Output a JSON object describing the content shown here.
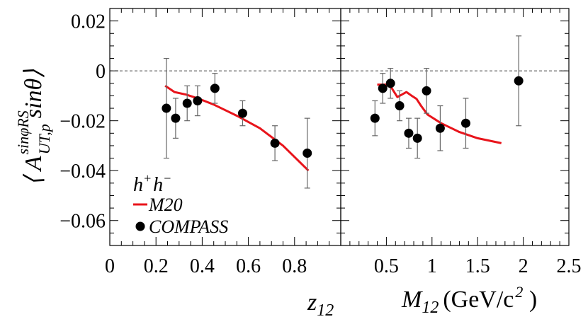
{
  "chart_data": [
    {
      "type": "scatter",
      "panel": "left",
      "title": "",
      "xlabel": "z",
      "xlabel_sub": "12",
      "ylabel_main": "A",
      "ylabel_sup": "sinφRS",
      "ylabel_sub": "UT,p",
      "ylabel_tail": "sinθ",
      "xlim": [
        0,
        1.0
      ],
      "ylim": [
        -0.07,
        0.025
      ],
      "x_ticks": [
        0,
        0.2,
        0.4,
        0.6,
        0.8
      ],
      "x_tick_labels": [
        "0",
        "0.2",
        "0.4",
        "0.6",
        "0.8"
      ],
      "y_ticks": [
        0.02,
        0,
        -0.02,
        -0.04,
        -0.06
      ],
      "y_tick_labels": [
        "0.02",
        "0",
        "−0.02",
        "−0.04",
        "−0.06"
      ],
      "zero_line": 0,
      "series": [
        {
          "name": "M20",
          "kind": "line",
          "color": "#e8141b",
          "x": [
            0.24,
            0.28,
            0.33,
            0.38,
            0.45,
            0.55,
            0.65,
            0.75,
            0.86
          ],
          "y": [
            -0.006,
            -0.0085,
            -0.0095,
            -0.011,
            -0.0135,
            -0.018,
            -0.023,
            -0.03,
            -0.04
          ]
        },
        {
          "name": "COMPASS",
          "kind": "points",
          "color": "#000000",
          "x": [
            0.245,
            0.285,
            0.335,
            0.38,
            0.455,
            0.575,
            0.715,
            0.855
          ],
          "y": [
            -0.015,
            -0.019,
            -0.013,
            -0.012,
            -0.007,
            -0.017,
            -0.029,
            -0.033
          ],
          "err": [
            0.02,
            0.008,
            0.007,
            0.006,
            0.006,
            0.005,
            0.007,
            0.014
          ]
        }
      ]
    },
    {
      "type": "scatter",
      "panel": "right",
      "title": "",
      "xlabel": "M",
      "xlabel_sub": "12",
      "xlabel_unit": "(GeV/c",
      "xlabel_unit_sup": "2",
      "xlabel_unit_end": " )",
      "xlim": [
        0,
        2.5
      ],
      "ylim": [
        -0.07,
        0.025
      ],
      "x_ticks": [
        0.5,
        1,
        1.5,
        2,
        2.5
      ],
      "x_tick_labels": [
        "0.5",
        "1",
        "1.5",
        "2",
        "2.5"
      ],
      "zero_line": 0,
      "series": [
        {
          "name": "M20",
          "kind": "line",
          "color": "#e8141b",
          "x": [
            0.4,
            0.5,
            0.56,
            0.62,
            0.67,
            0.72,
            0.77,
            0.83,
            0.88,
            0.95,
            1.1,
            1.3,
            1.5,
            1.76
          ],
          "y": [
            -0.0055,
            -0.0055,
            -0.007,
            -0.0105,
            -0.0095,
            -0.0085,
            -0.0098,
            -0.0112,
            -0.014,
            -0.0175,
            -0.021,
            -0.0245,
            -0.027,
            -0.029
          ]
        },
        {
          "name": "COMPASS",
          "kind": "points",
          "color": "#000000",
          "x": [
            0.375,
            0.46,
            0.545,
            0.645,
            0.745,
            0.84,
            0.94,
            1.09,
            1.37,
            1.95
          ],
          "y": [
            -0.019,
            -0.007,
            -0.005,
            -0.014,
            -0.025,
            -0.027,
            -0.008,
            -0.023,
            -0.021,
            -0.004
          ],
          "err": [
            0.007,
            0.006,
            0.006,
            0.006,
            0.006,
            0.008,
            0.009,
            0.009,
            0.01,
            0.018
          ]
        }
      ]
    }
  ],
  "legend": {
    "header_h": "h",
    "header_sup1": "+",
    "header_h2": "h",
    "header_sup2": "−",
    "line_label": "M20",
    "points_label": "COMPASS"
  }
}
